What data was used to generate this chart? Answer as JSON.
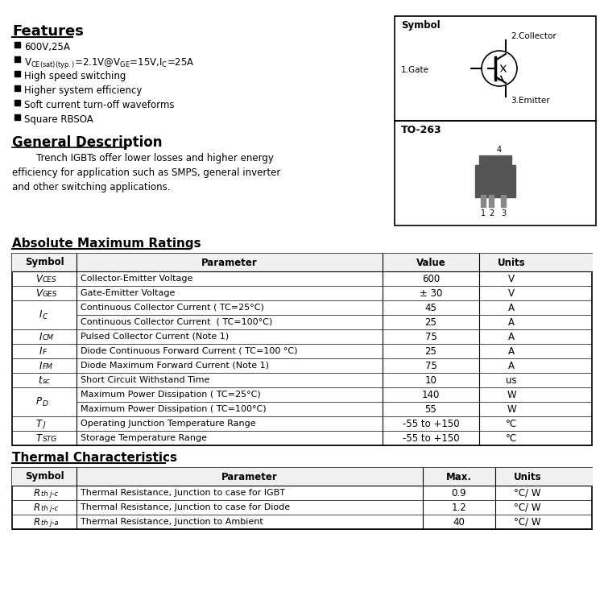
{
  "bg_color": "#ffffff",
  "features_title": "Features",
  "features": [
    "600V,25A",
    "V₁=2.1V@V₂=15V,I₃=25A",
    "High speed switching",
    "Higher system efficiency",
    "Soft current turn-off waveforms",
    "Square RBSOA"
  ],
  "gen_desc_title": "General Description",
  "gen_desc_text": "        Trench IGBTs offer lower losses and higher energy\nefficiency for application such as SMPS, general inverter\nand other switching applications.",
  "abs_max_title": "Absolute Maximum Ratings",
  "abs_max_headers": [
    "Symbol",
    "Parameter",
    "Value",
    "Units"
  ],
  "abs_max_rows": [
    [
      "VCES",
      "Collector-Emitter Voltage",
      "600",
      "V"
    ],
    [
      "VGES",
      "Gate-Emitter Voltage",
      "± 30",
      "V"
    ],
    [
      "IC_1",
      "Continuous Collector Current ( TC=25°C)",
      "45",
      "A"
    ],
    [
      "IC_2",
      "Continuous Collector Current  ( TC=100°C)",
      "25",
      "A"
    ],
    [
      "ICM",
      "Pulsed Collector Current (Note 1)",
      "75",
      "A"
    ],
    [
      "IF",
      "Diode Continuous Forward Current ( TC=100 °C)",
      "25",
      "A"
    ],
    [
      "IFM",
      "Diode Maximum Forward Current (Note 1)",
      "75",
      "A"
    ],
    [
      "tsc",
      "Short Circuit Withstand Time",
      "10",
      "us"
    ],
    [
      "PD_1",
      "Maximum Power Dissipation ( TC=25°C)",
      "140",
      "W"
    ],
    [
      "PD_2",
      "Maximum Power Dissipation ( TC=100°C)",
      "55",
      "W"
    ],
    [
      "TJ",
      "Operating Junction Temperature Range",
      "-55 to +150",
      "°C"
    ],
    [
      "TSTG",
      "Storage Temperature Range",
      "-55 to +150",
      "°C"
    ]
  ],
  "thermal_title": "Thermal Characteristics",
  "thermal_headers": [
    "Symbol",
    "Parameter",
    "Max.",
    "Units"
  ],
  "thermal_rows": [
    [
      "Rth j-c",
      "Thermal Resistance, Junction to case for IGBT",
      "0.9",
      "°C/ W"
    ],
    [
      "Rth j-c",
      "Thermal Resistance, Junction to case for Diode",
      "1.2",
      "°C/ W"
    ],
    [
      "Rth j-a",
      "Thermal Resistance, Junction to Ambient",
      "40",
      "°C/ W"
    ]
  ],
  "symbol_box_label": "Symbol",
  "collector_label": "2.Collector",
  "gate_label": "1.Gate",
  "emitter_label": "3.Emitter",
  "package_label": "TO-263"
}
